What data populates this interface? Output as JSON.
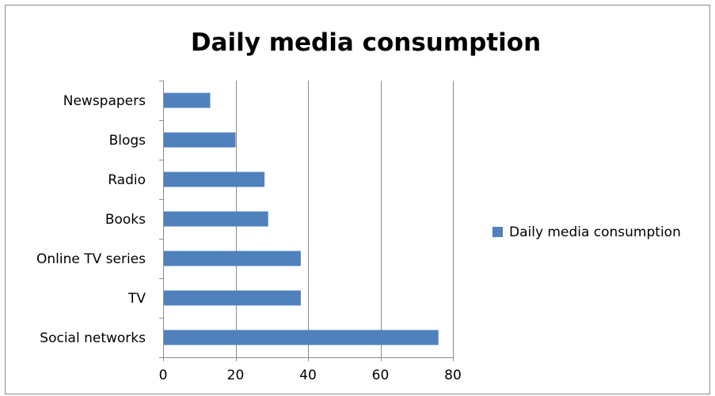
{
  "chart_data": {
    "type": "bar",
    "orientation": "horizontal",
    "title": "Daily media consumption",
    "xlabel": "",
    "ylabel": "",
    "categories": [
      "Social networks",
      "TV",
      "Online TV series",
      "Books",
      "Radio",
      "Blogs",
      "Newspapers"
    ],
    "series": [
      {
        "name": "Daily media consumption",
        "values": [
          76,
          38,
          38,
          29,
          28,
          20,
          13
        ],
        "color": "#4F81BD"
      }
    ],
    "xlim": [
      0,
      80
    ],
    "xticks": [
      0,
      20,
      40,
      60,
      80
    ],
    "xtick_labels": [
      "0",
      "20",
      "40",
      "60",
      "80"
    ],
    "grid": "vertical major gridlines",
    "legend_position": "right"
  }
}
